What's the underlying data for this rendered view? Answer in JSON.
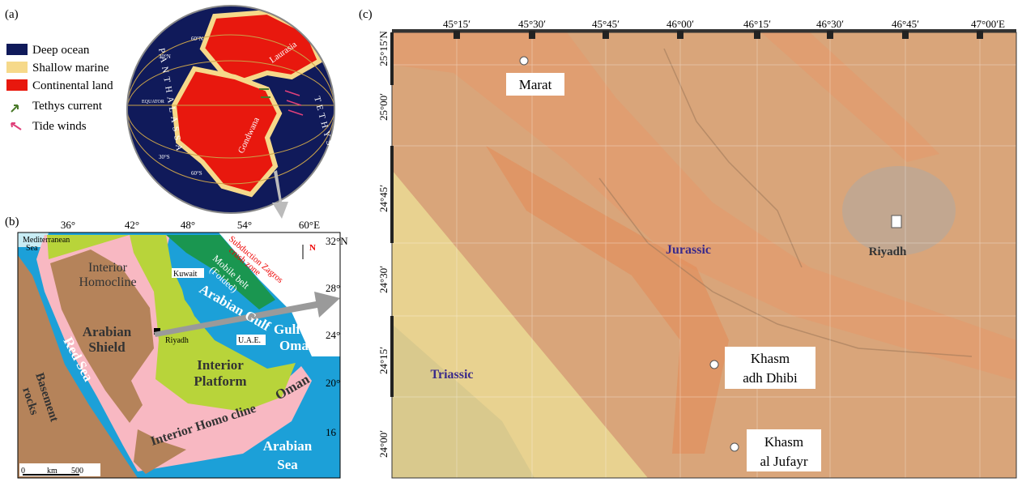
{
  "panel_a": {
    "label": "(a)",
    "legend": [
      "Deep ocean",
      "Shallow marine",
      "Continental land",
      "Tethys current",
      "Tide winds"
    ],
    "globe": {
      "lat_labels": [
        "60°N",
        "30°N",
        "EQUATOR",
        "30°S",
        "60°S"
      ],
      "laurasia": "Laurasia",
      "gondwana": "Gondwana",
      "panthalassa": "PANTHALASSA",
      "tethys": "TETHYS"
    }
  },
  "panel_b": {
    "label": "(b)",
    "lon_ticks": [
      "36°",
      "42°",
      "48°",
      "54°",
      "60°E"
    ],
    "lat_ticks": [
      "32°N",
      "28°",
      "24°",
      "20°",
      "16"
    ],
    "north": "N",
    "scale": [
      "0",
      "km",
      "500"
    ],
    "labels": {
      "mediterranean": [
        "Mediterranean",
        "Sea"
      ],
      "interior_homocline": [
        "Interior",
        "Homocline"
      ],
      "arabian_shield": [
        "Arabian",
        "Shield"
      ],
      "red_sea": "Red Sea",
      "basement": [
        "Basement",
        "rocks"
      ],
      "kuwait": "Kuwait",
      "arabian_gulf": "Arabian Gulf",
      "mobile_belt": [
        "Mobile belt",
        "(Folded)"
      ],
      "zagros": [
        "Subduction Zagros",
        "crush zone"
      ],
      "riyadh": "Riyadh",
      "uae": "U.A.E.",
      "gulf_oman": [
        "Gulf of",
        "Oman"
      ],
      "interior_platform": [
        "Interior",
        "Platform"
      ],
      "oman": "Oman",
      "interior_homo_cline": "Interior Homo cline",
      "arabian_sea": [
        "Arabian",
        "Sea"
      ]
    }
  },
  "panel_c": {
    "label": "(c)",
    "lon_ticks": [
      "45°15′",
      "45°30′",
      "45°45′",
      "46°00′",
      "46°15′",
      "46°30′",
      "46°45′",
      "47°00′E"
    ],
    "lat_ticks": [
      "25°15′N",
      "25°00′",
      "24°45′",
      "24°30′",
      "24°15′",
      "24°00′"
    ],
    "places": {
      "marat": "Marat",
      "riyadh": "Riyadh",
      "khasm_dhibi": [
        "Khasm",
        "adh Dhibi"
      ],
      "khasm_jufayr": [
        "Khasm",
        "al Jufayr"
      ]
    },
    "units": {
      "jurassic": "Jurassic",
      "triassic": "Triassic"
    }
  }
}
